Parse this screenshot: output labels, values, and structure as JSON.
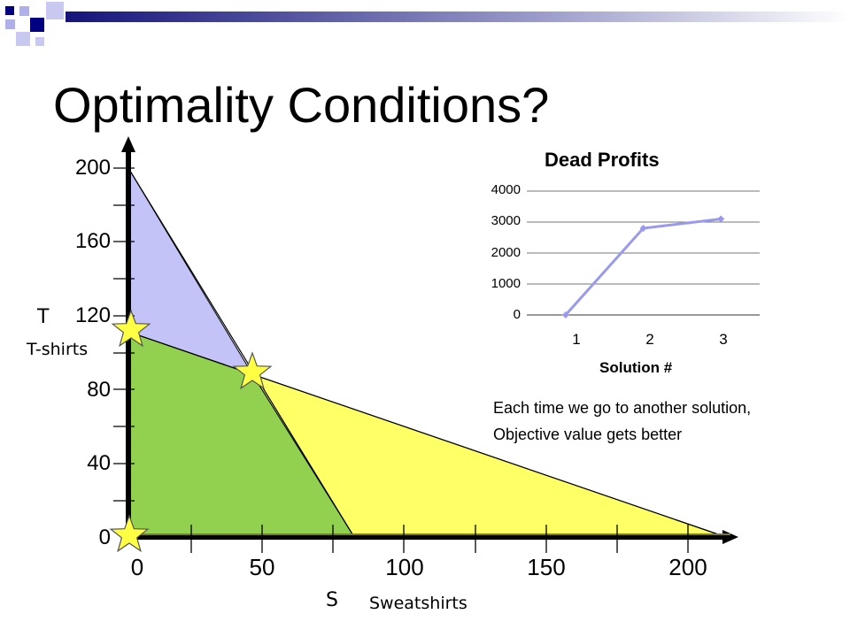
{
  "title": "Optimality Conditions?",
  "main_chart": {
    "y_ticks": [
      "200",
      "160",
      "120",
      "80",
      "40",
      "0"
    ],
    "x_ticks": [
      "0",
      "50",
      "100",
      "150",
      "200"
    ],
    "y_letter": "T",
    "y_name": "T-shirts",
    "x_letter": "S",
    "x_name": "Sweatshirts",
    "colors": {
      "feasible": "#92d050",
      "blue_region": "#c3c3f8",
      "yellow_region": "#ffff66",
      "star": "#ffff44"
    }
  },
  "chart_data": {
    "type": "line",
    "title": "Dead Profits",
    "xlabel": "Solution #",
    "ylabel": "",
    "categories": [
      "1",
      "2",
      "3"
    ],
    "values": [
      0,
      2800,
      3100
    ],
    "ylim": [
      0,
      4000
    ],
    "y_ticks": [
      "4000",
      "3000",
      "2000",
      "1000",
      "0"
    ],
    "grid": true,
    "color": "#9999ee"
  },
  "note": {
    "line1": "Each time we go to another solution,",
    "line2": "Objective value gets better"
  }
}
